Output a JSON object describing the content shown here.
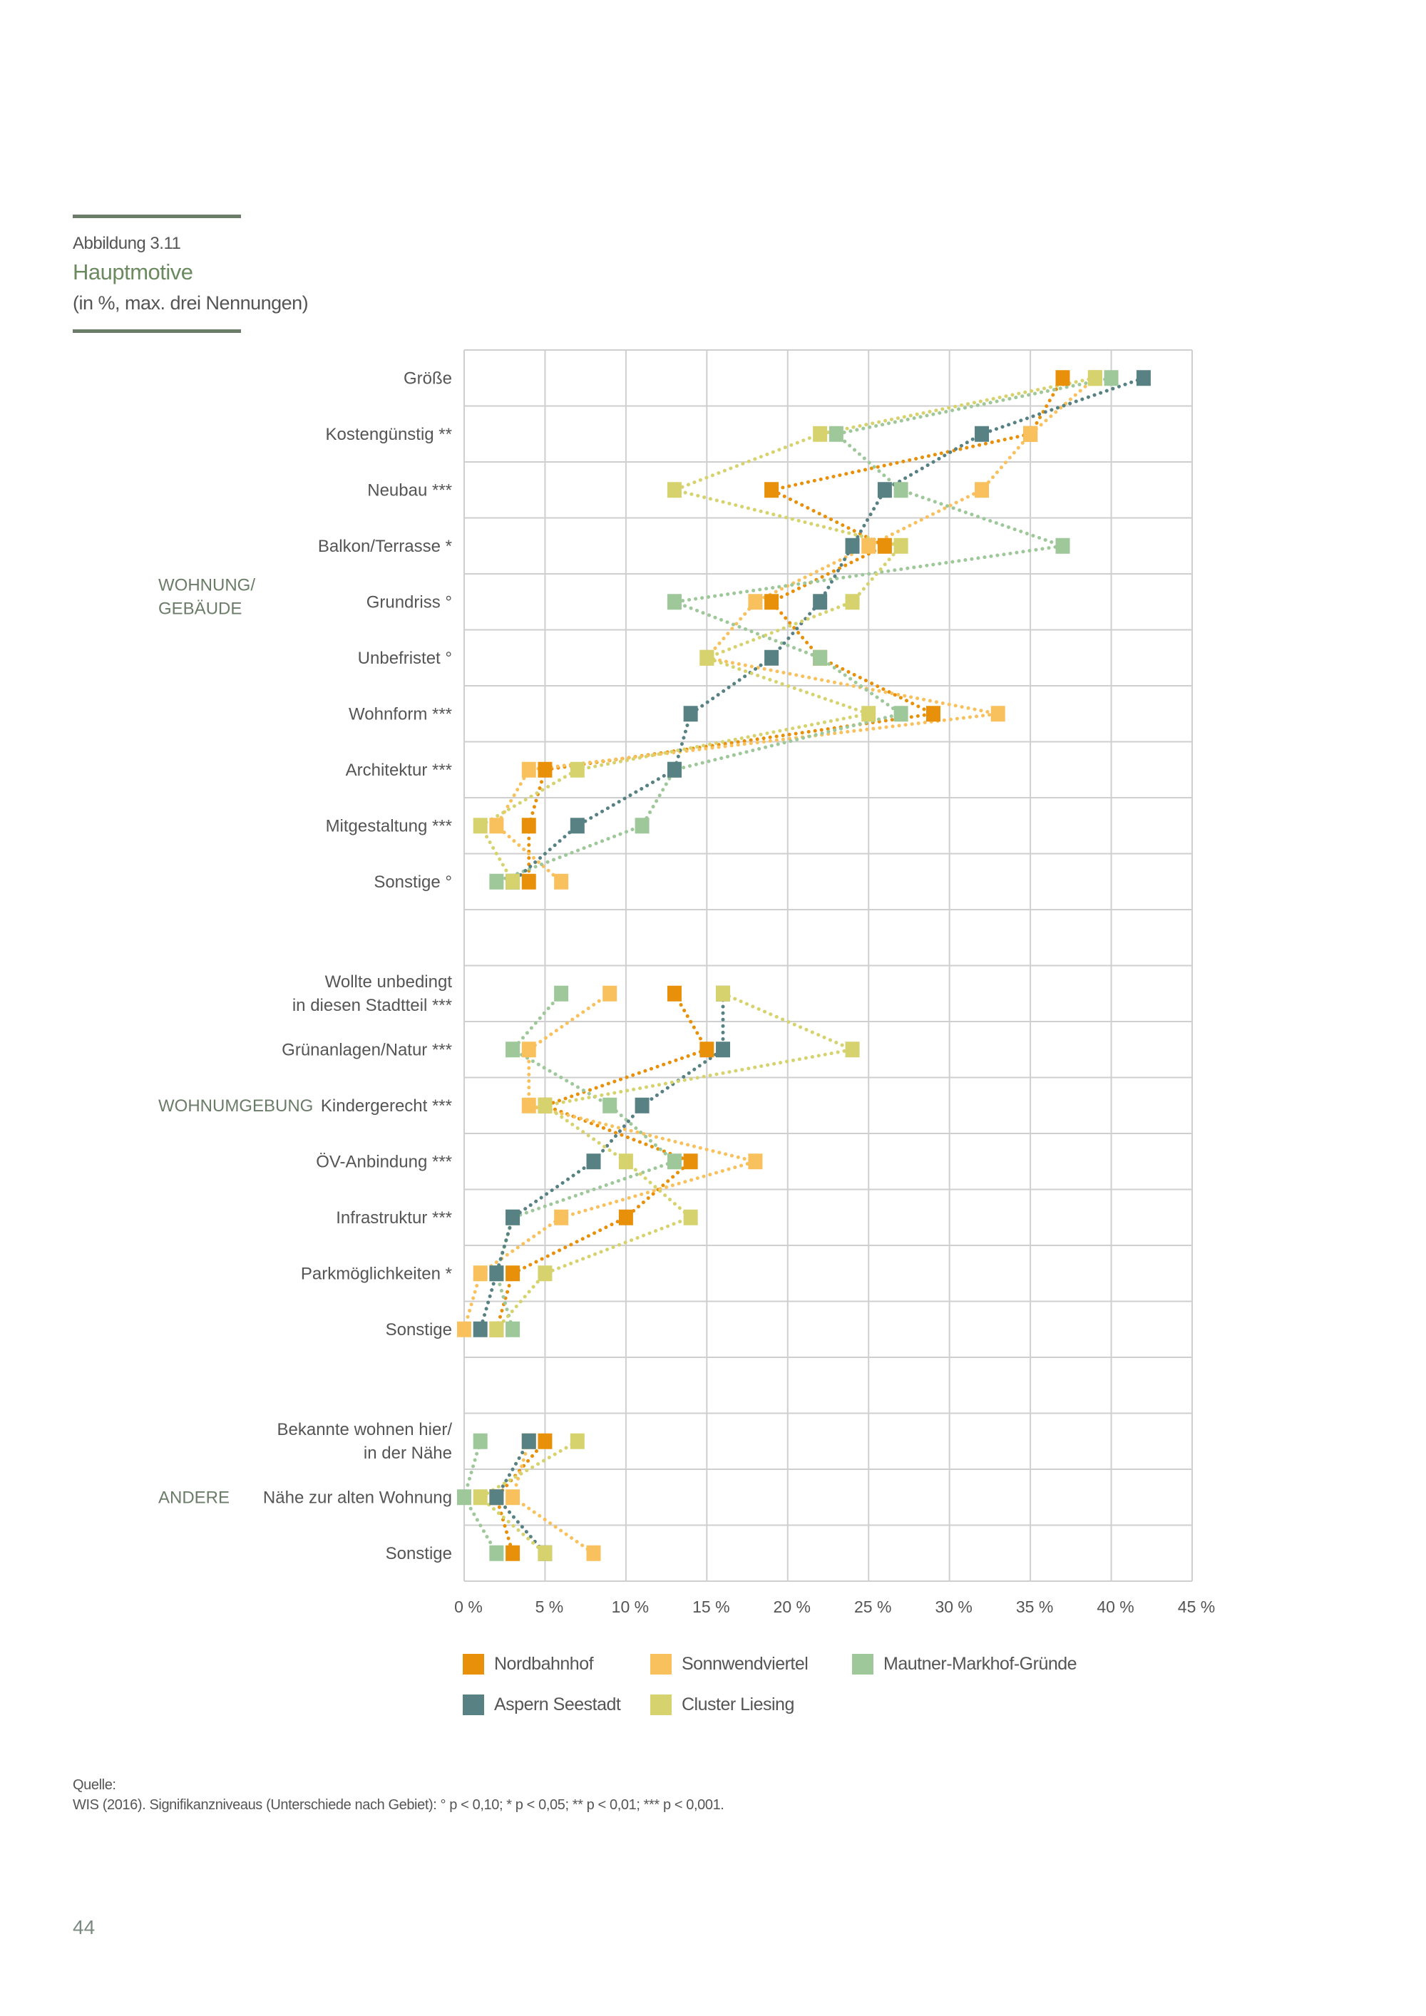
{
  "figure": {
    "label": "Abbildung 3.11",
    "title": "Hauptmotive",
    "subtitle": "(in %, max. drei Nennungen)"
  },
  "chart_data": {
    "type": "scatter",
    "orientation": "horizontal-dot-plot",
    "title": "Hauptmotive",
    "subtitle": "(in %, max. drei Nennungen)",
    "xlabel": "",
    "ylabel": "",
    "xlim": [
      0,
      45
    ],
    "x_ticks": [
      "0 %",
      "5 %",
      "10 %",
      "15 %",
      "20 %",
      "25 %",
      "30 %",
      "35 %",
      "40 %",
      "45 %"
    ],
    "grid": true,
    "legend_position": "bottom",
    "groups": [
      {
        "name": "WOHNUNG/\nGEBÄUDE",
        "categories": [
          "Größe",
          "Kostengünstig **",
          "Neubau ***",
          "Balkon/Terrasse *",
          "Grundriss °",
          "Unbefristet °",
          "Wohnform ***",
          "Architektur ***",
          "Mitgestaltung ***",
          "Sonstige °"
        ]
      },
      {
        "name": "WOHNUMGEBUNG",
        "categories": [
          "Wollte unbedingt\nin diesen Stadtteil ***",
          "Grünanlagen/Natur ***",
          "Kindergerecht ***",
          "ÖV-Anbindung ***",
          "Infrastruktur ***",
          "Parkmöglichkeiten *",
          "Sonstige"
        ]
      },
      {
        "name": "ANDERE",
        "categories": [
          "Bekannte wohnen hier/\nin der Nähe",
          "Nähe zur alten Wohnung",
          "Sonstige"
        ]
      }
    ],
    "series": [
      {
        "name": "Nordbahnhof",
        "color": "#E8900A",
        "values": [
          [
            37,
            35,
            19,
            26,
            19,
            22,
            29,
            5,
            4,
            4
          ],
          [
            13,
            15,
            5,
            14,
            10,
            3,
            2
          ],
          [
            5,
            2,
            3
          ]
        ]
      },
      {
        "name": "Sonnwendviertel",
        "color": "#F9C15E",
        "values": [
          [
            39,
            35,
            32,
            25,
            18,
            15,
            33,
            4,
            2,
            6
          ],
          [
            9,
            4,
            4,
            18,
            6,
            1,
            0
          ],
          [
            4,
            3,
            8
          ]
        ]
      },
      {
        "name": "Mautner-Markhof-Gründe",
        "color": "#9EC79A",
        "values": [
          [
            40,
            23,
            27,
            37,
            13,
            22,
            27,
            13,
            11,
            2
          ],
          [
            6,
            3,
            9,
            13,
            3,
            2,
            3
          ],
          [
            1,
            0,
            2
          ]
        ]
      },
      {
        "name": "Aspern Seestadt",
        "color": "#578183",
        "values": [
          [
            42,
            32,
            26,
            24,
            22,
            19,
            14,
            13,
            7,
            3
          ],
          [
            16,
            16,
            11,
            8,
            3,
            2,
            1
          ],
          [
            4,
            2,
            5
          ]
        ]
      },
      {
        "name": "Cluster Liesing",
        "color": "#D6D36E",
        "values": [
          [
            39,
            22,
            13,
            27,
            24,
            15,
            25,
            7,
            1,
            3
          ],
          [
            16,
            24,
            5,
            10,
            14,
            5,
            2
          ],
          [
            7,
            1,
            5
          ]
        ]
      }
    ]
  },
  "legend": [
    {
      "label": "Nordbahnhof",
      "color": "#E8900A"
    },
    {
      "label": "Sonnwendviertel",
      "color": "#F9C15E"
    },
    {
      "label": "Mautner-Markhof-Gründe",
      "color": "#9EC79A"
    },
    {
      "label": "Aspern Seestadt",
      "color": "#578183"
    },
    {
      "label": "Cluster Liesing",
      "color": "#D6D36E"
    }
  ],
  "source": {
    "label": "Quelle:",
    "text": "WIS (2016). Signifikanzniveaus (Unterschiede nach Gebiet): ° p < 0,10; * p < 0,05; ** p < 0,01; *** p < 0,001."
  },
  "page_number": "44"
}
